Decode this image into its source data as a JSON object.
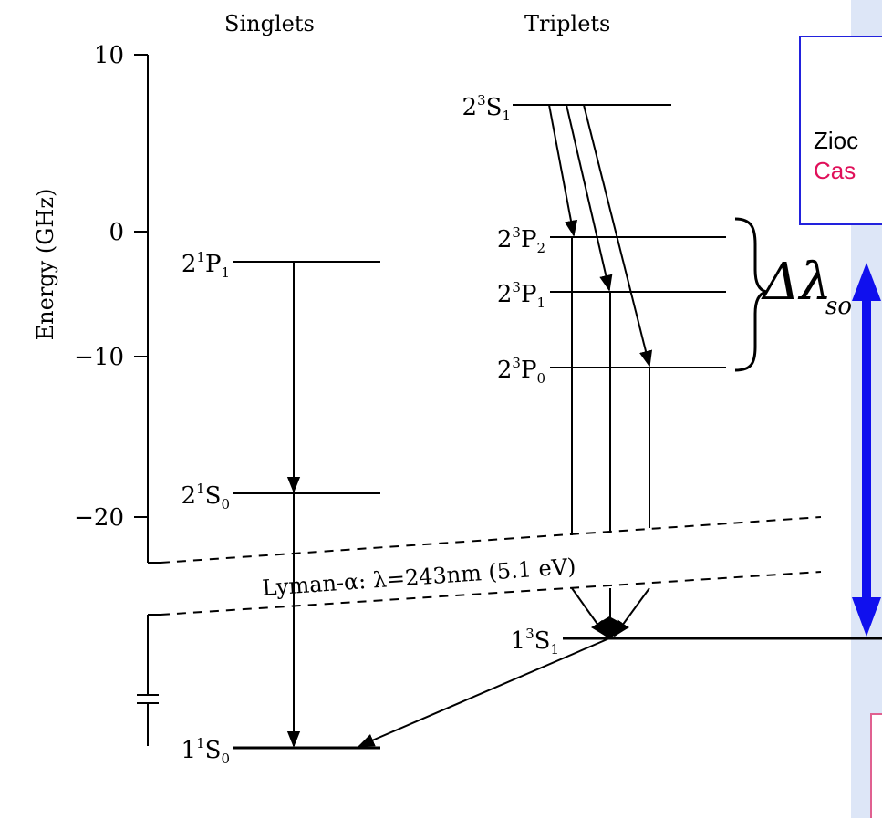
{
  "headers": {
    "singlets": "Singlets",
    "triplets": "Triplets"
  },
  "axis": {
    "label": "Energy (GHz)",
    "ticks": [
      "10",
      "0",
      "−10",
      "−20"
    ]
  },
  "levels": {
    "s_2P1": {
      "base": "2",
      "sup": "1",
      "letter": "P",
      "sub": "1"
    },
    "s_2S0": {
      "base": "2",
      "sup": "1",
      "letter": "S",
      "sub": "0"
    },
    "s_1S0": {
      "base": "1",
      "sup": "1",
      "letter": "S",
      "sub": "0"
    },
    "t_2S1": {
      "base": "2",
      "sup": "3",
      "letter": "S",
      "sub": "1"
    },
    "t_2P2": {
      "base": "2",
      "sup": "3",
      "letter": "P",
      "sub": "2"
    },
    "t_2P1": {
      "base": "2",
      "sup": "3",
      "letter": "P",
      "sub": "1"
    },
    "t_2P0": {
      "base": "2",
      "sup": "3",
      "letter": "P",
      "sub": "0"
    },
    "t_1S1": {
      "base": "1",
      "sup": "3",
      "letter": "S",
      "sub": "1"
    }
  },
  "lyman": "Lyman-α: λ=243nm (5.1 eV)",
  "splitting": {
    "symbol": "Δλ",
    "sub": "so"
  },
  "callout": {
    "line1": "Zioc",
    "line2": "Cas"
  },
  "colors": {
    "panel": "#dde6f7",
    "arrow": "#1010ee",
    "box_border": "#2222dd",
    "highlight": "#e0105a",
    "pink_border": "#e06090"
  }
}
